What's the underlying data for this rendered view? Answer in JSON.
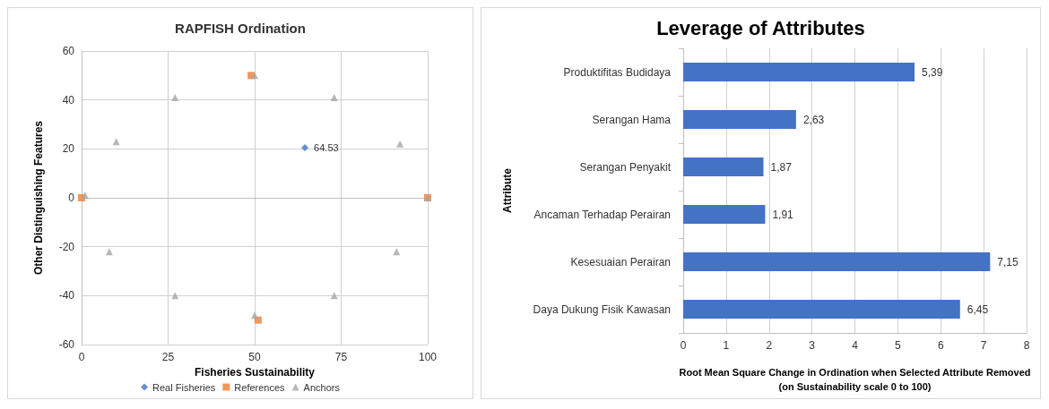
{
  "chart_data": [
    {
      "type": "scatter",
      "title": "RAPFISH Ordination",
      "xlabel": "Fisheries Sustainability",
      "ylabel": "Other Distinguishing Features",
      "annotations": [
        {
          "text": "64.53",
          "x": 64.53,
          "y": 20.5
        }
      ],
      "xlim": [
        0,
        100
      ],
      "xticks": [
        0,
        25,
        50,
        75,
        100
      ],
      "ylim": [
        -60,
        60
      ],
      "yticks": [
        -60,
        -40,
        -20,
        0,
        20,
        40,
        60
      ],
      "grid": true,
      "legend": "bottom",
      "series": [
        {
          "name": "Real Fisheries",
          "color": "#4472c4",
          "marker": "diamond",
          "x": [
            64.53
          ],
          "values": [
            20.5
          ]
        },
        {
          "name": "References",
          "color": "#ed7d31",
          "marker": "square",
          "x": [
            0,
            49,
            100,
            51
          ],
          "values": [
            0,
            50,
            0,
            -50
          ]
        },
        {
          "name": "Anchors",
          "color": "#a5a5a5",
          "marker": "triangle",
          "x": [
            1,
            10,
            27,
            50,
            73,
            92,
            100,
            91,
            8,
            27,
            50,
            73
          ],
          "values": [
            1,
            23,
            41,
            50,
            41,
            22,
            0,
            -22,
            -22,
            -40,
            -48,
            -40
          ]
        }
      ]
    },
    {
      "type": "bar",
      "orientation": "horizontal",
      "title": "Leverage of Attributes",
      "ylabel": "Attribute",
      "xlabel": "Root Mean Square Change in Ordination when Selected Attribute Removed\n(on Sustainability scale 0 to 100)",
      "categories": [
        "Produktifitas Budidaya",
        "Serangan Hama",
        "Serangan Penyakit",
        "Ancaman Terhadap Perairan",
        "Kesesuaian Perairan",
        "Daya Dukung Fisik Kawasan"
      ],
      "values": [
        5.39,
        2.63,
        1.87,
        1.91,
        7.15,
        6.45
      ],
      "value_labels": [
        "5,39",
        "2,63",
        "1,87",
        "1,91",
        "7,15",
        "6,45"
      ],
      "color": "#4472c4",
      "xlim": [
        0,
        8
      ],
      "xticks": [
        0,
        1,
        2,
        3,
        4,
        5,
        6,
        7,
        8
      ],
      "grid": "x"
    }
  ]
}
